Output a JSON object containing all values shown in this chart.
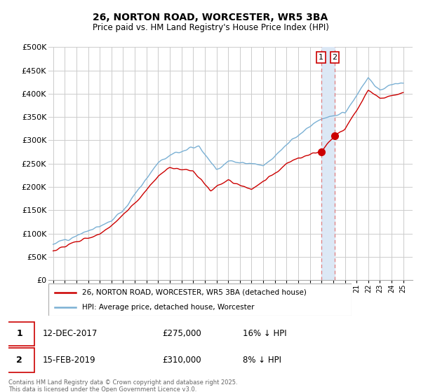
{
  "title": "26, NORTON ROAD, WORCESTER, WR5 3BA",
  "subtitle": "Price paid vs. HM Land Registry's House Price Index (HPI)",
  "title_fontsize": 10,
  "subtitle_fontsize": 8.5,
  "ylim": [
    0,
    500000
  ],
  "yticks": [
    0,
    50000,
    100000,
    150000,
    200000,
    250000,
    300000,
    350000,
    400000,
    450000,
    500000
  ],
  "legend_entries": [
    "26, NORTON ROAD, WORCESTER, WR5 3BA (detached house)",
    "HPI: Average price, detached house, Worcester"
  ],
  "legend_colors": [
    "#cc0000",
    "#7ab0d4"
  ],
  "sale1_date": 2017.958,
  "sale1_price": 275000,
  "sale2_date": 2019.12,
  "sale2_price": 310000,
  "footnote": "Contains HM Land Registry data © Crown copyright and database right 2025.\nThis data is licensed under the Open Government Licence v3.0.",
  "bg_color": "#ffffff",
  "plot_bg_color": "#ffffff",
  "grid_color": "#cccccc",
  "hpi_color": "#7ab0d4",
  "price_color": "#cc0000",
  "dashed_line_color": "#e08080",
  "shade_color": "#dce8f5",
  "xstart": 1995,
  "xend": 2025
}
